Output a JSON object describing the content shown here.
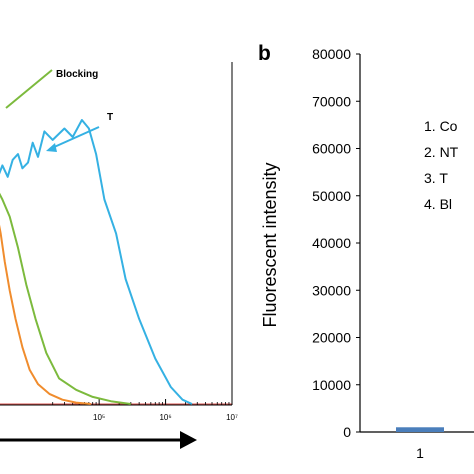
{
  "panel_b_label": "b",
  "chart_data": [
    {
      "type": "line",
      "panel": "a",
      "x_scale": "log",
      "xlim": [
        1,
        10000000
      ],
      "x_tick_labels": [
        "10⁵",
        "10⁶",
        "10⁷"
      ],
      "series": [
        {
          "name": "Blocking",
          "color": "#7cba3d",
          "x": [
            3000,
            3500,
            4500,
            6000,
            8000,
            11000,
            16000,
            25000,
            45000,
            80000,
            150000,
            300000
          ],
          "y": [
            0.75,
            0.72,
            0.66,
            0.55,
            0.42,
            0.3,
            0.18,
            0.09,
            0.05,
            0.025,
            0.01,
            0.0
          ]
        },
        {
          "name": "T",
          "color": "#35b1e3",
          "x": [
            3000,
            3500,
            4200,
            5000,
            6000,
            7000,
            8500,
            10000,
            12000,
            15000,
            20000,
            30000,
            40000,
            55000,
            70000,
            90000,
            120000,
            180000,
            250000,
            400000,
            700000,
            1200000,
            1800000,
            2500000
          ],
          "y": [
            0.8,
            0.84,
            0.8,
            0.86,
            0.88,
            0.83,
            0.85,
            0.92,
            0.87,
            0.96,
            0.93,
            0.97,
            0.94,
            1.0,
            0.97,
            0.88,
            0.72,
            0.6,
            0.44,
            0.3,
            0.16,
            0.06,
            0.015,
            0.0
          ]
        },
        {
          "name": "",
          "color": "#f08c2d",
          "x": [
            3000,
            3300,
            3800,
            4500,
            5500,
            7000,
            9000,
            12000,
            18000,
            28000,
            45000,
            75000
          ],
          "y": [
            0.65,
            0.6,
            0.5,
            0.4,
            0.3,
            0.2,
            0.12,
            0.07,
            0.035,
            0.015,
            0.005,
            0.0
          ]
        }
      ],
      "annotations": [
        "Blocking",
        "T"
      ]
    },
    {
      "type": "bar",
      "panel": "b",
      "ylabel": "Fluorescent intensity",
      "ylim": [
        0,
        80000
      ],
      "y_ticks": [
        "0",
        "10000",
        "20000",
        "30000",
        "40000",
        "50000",
        "60000",
        "70000",
        "80000"
      ],
      "categories": [
        "1"
      ],
      "values": [
        1000
      ],
      "bar_color": "#4a7ebb",
      "legend": [
        "1.   Co",
        "2.   NT",
        "3.   T",
        "4.   Bl"
      ]
    }
  ]
}
